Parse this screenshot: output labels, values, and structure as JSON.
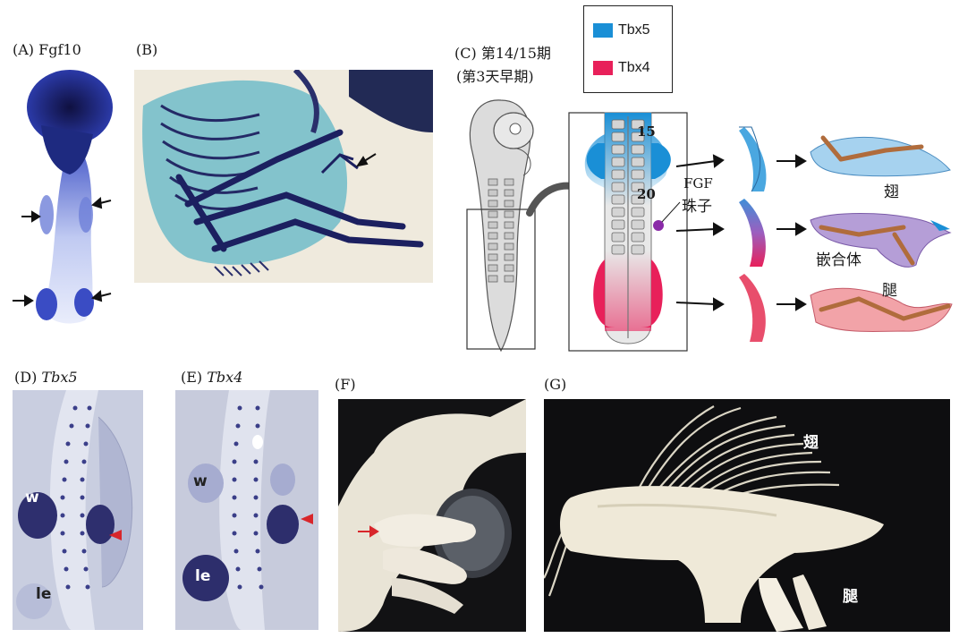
{
  "panels": {
    "A": {
      "label": "(A) Fgf10"
    },
    "B": {
      "label": "(B)"
    },
    "C": {
      "label_line1": "(C) 第14/15期",
      "label_line2": "(第3天早期)"
    },
    "D": {
      "prefix": "(D) ",
      "gene": "Tbx5",
      "w": "w",
      "le": "le"
    },
    "E": {
      "prefix": "(E) ",
      "gene": "Tbx4",
      "w": "w",
      "le": "le"
    },
    "F": {
      "label": "(F)"
    },
    "G": {
      "label": "(G)",
      "wing": "翅",
      "leg": "腿"
    }
  },
  "legend": {
    "items": [
      {
        "name": "Tbx5",
        "color": "#1a8fd6"
      },
      {
        "name": "Tbx4",
        "color": "#e8205a"
      }
    ]
  },
  "diagram_c": {
    "somite_15": "15",
    "somite_20": "20",
    "fgf_line1": "FGF",
    "fgf_line2": "珠子",
    "outcome_wing": "翅",
    "outcome_chimera": "嵌合体",
    "outcome_leg": "腿"
  }
}
